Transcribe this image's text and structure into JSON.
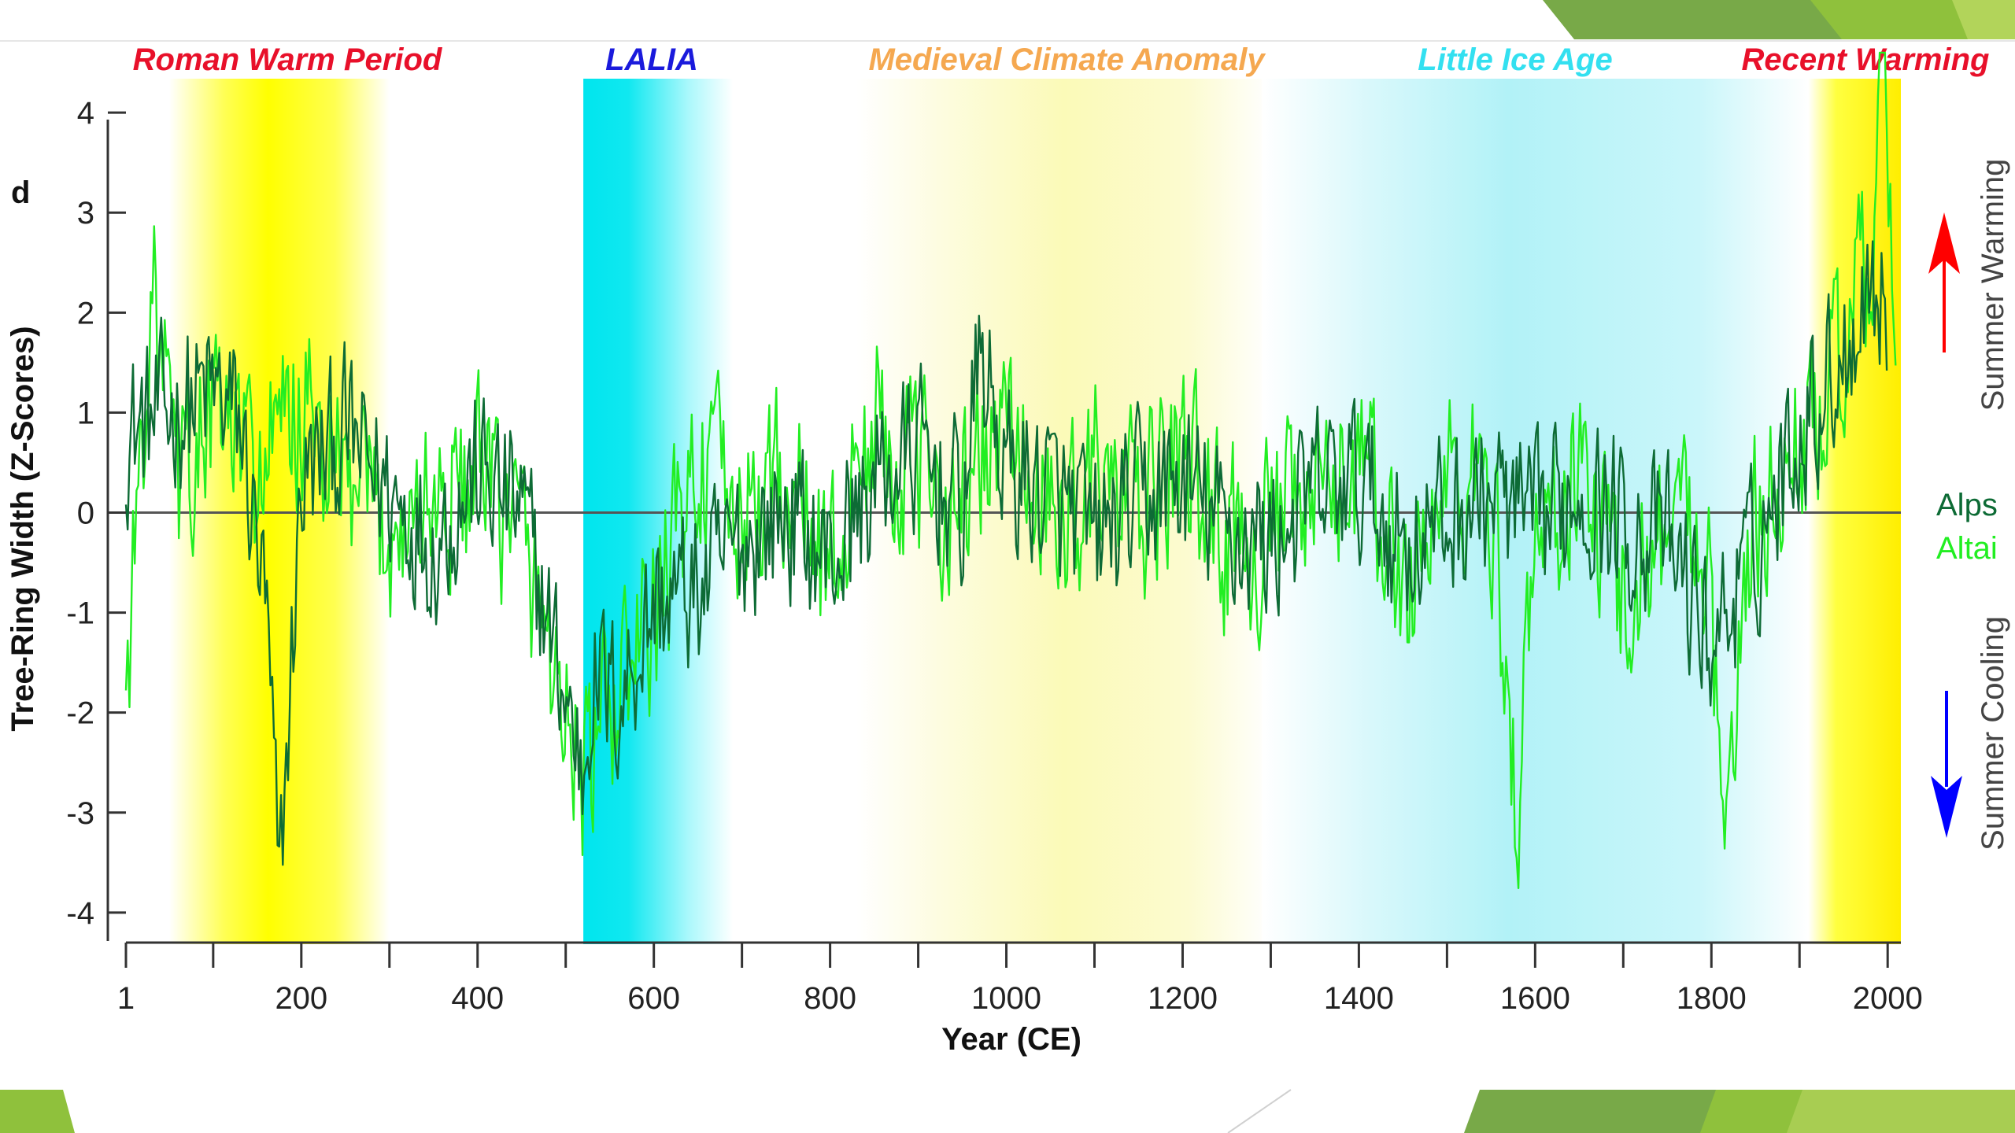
{
  "colors": {
    "warm": "#ffff00",
    "cold": "#00e6f0",
    "alps": "#0d6b35",
    "altai": "#22ee22",
    "arrow_warm": "#ff0000",
    "arrow_cool": "#0000ff",
    "slide_accent": "#7cb342"
  },
  "panel_letter": "d",
  "periods": [
    {
      "name": "Roman Warm Period",
      "color": "#e8102a",
      "type": "warm",
      "start": 50,
      "end": 300
    },
    {
      "name": "LALIA",
      "color": "#1a1adc",
      "type": "cold",
      "start": 520,
      "end": 690
    },
    {
      "name": "Medieval Climate Anomaly",
      "color": "#f5a850",
      "type": "warm-faint",
      "start": 830,
      "end": 1300
    },
    {
      "name": "Little Ice Age",
      "color": "#33e0f0",
      "type": "cold-faint",
      "start": 1290,
      "end": 1910
    },
    {
      "name": "Recent Warming",
      "color": "#e8102a",
      "type": "warm",
      "start": 1910,
      "end": 2015
    }
  ],
  "side_labels": {
    "warming": "Summer Warming",
    "cooling": "Summer Cooling"
  },
  "chart_data": {
    "type": "line",
    "xlabel": "Year (CE)",
    "ylabel": "Tree-Ring Width (Z-Scores)",
    "xlim": [
      1,
      2015
    ],
    "ylim": [
      -4.3,
      4.3
    ],
    "x_ticks": [
      1,
      200,
      400,
      600,
      800,
      1000,
      1200,
      1400,
      1600,
      1800,
      2000
    ],
    "y_ticks": [
      -4,
      -3,
      -2,
      -1,
      0,
      1,
      2,
      3,
      4
    ],
    "legend_position": "right",
    "series": [
      {
        "name": "Alps",
        "color": "#0d6b35",
        "x": [
          1,
          100,
          130,
          160,
          175,
          200,
          250,
          300,
          350,
          400,
          450,
          520,
          530,
          560,
          600,
          650,
          700,
          750,
          800,
          850,
          900,
          950,
          970,
          1000,
          1050,
          1100,
          1150,
          1200,
          1250,
          1300,
          1350,
          1400,
          1450,
          1500,
          1550,
          1600,
          1650,
          1700,
          1750,
          1800,
          1850,
          1900,
          1950,
          1980,
          2000
        ],
        "y": [
          0.8,
          1.2,
          0.9,
          -1.0,
          -3.8,
          0.3,
          0.8,
          0.2,
          -0.3,
          0.4,
          0.0,
          -2.6,
          -1.6,
          -1.9,
          -0.9,
          -0.8,
          -0.3,
          0.0,
          -0.5,
          0.3,
          0.6,
          0.0,
          1.6,
          0.4,
          0.2,
          -0.3,
          0.1,
          0.3,
          -0.2,
          -0.3,
          0.2,
          0.3,
          -0.3,
          -0.1,
          0.2,
          -0.2,
          0.3,
          -0.1,
          -0.3,
          -1.3,
          -0.4,
          0.9,
          1.6,
          2.4,
          2.0
        ]
      },
      {
        "name": "Altai",
        "color": "#22ee22",
        "x": [
          1,
          30,
          60,
          100,
          150,
          200,
          250,
          300,
          350,
          400,
          450,
          520,
          560,
          600,
          650,
          700,
          750,
          800,
          850,
          900,
          950,
          1000,
          1050,
          1100,
          1150,
          1200,
          1250,
          1300,
          1350,
          1400,
          1450,
          1500,
          1550,
          1580,
          1600,
          1650,
          1700,
          1750,
          1800,
          1810,
          1850,
          1900,
          1950,
          1980,
          1995,
          2010
        ],
        "y": [
          -1.8,
          2.3,
          0.2,
          1.0,
          0.4,
          1.0,
          0.2,
          -0.2,
          0.1,
          0.3,
          -0.2,
          -2.7,
          -1.8,
          -1.1,
          0.6,
          -0.1,
          0.4,
          -0.6,
          0.9,
          0.3,
          0.1,
          0.9,
          -0.2,
          0.4,
          -0.1,
          0.6,
          -0.3,
          -0.2,
          0.0,
          0.6,
          -0.8,
          0.3,
          0.2,
          -3.0,
          -0.3,
          0.4,
          -0.8,
          0.0,
          -0.3,
          -3.3,
          -0.1,
          0.6,
          1.5,
          2.5,
          4.5,
          1.3
        ]
      }
    ]
  }
}
